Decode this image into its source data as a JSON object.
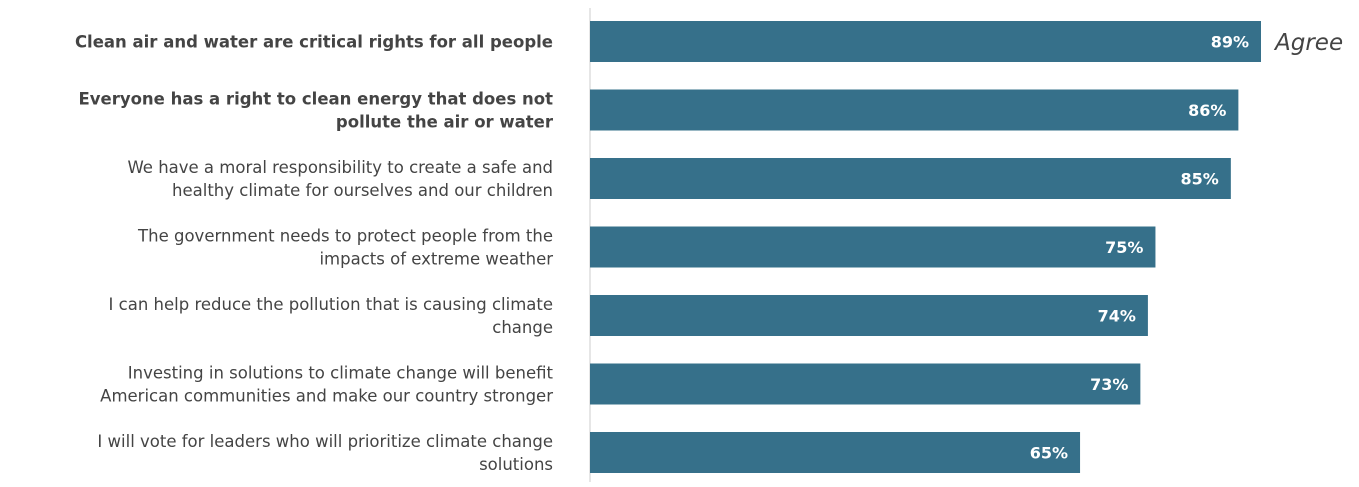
{
  "chart_data": {
    "type": "bar",
    "orientation": "horizontal",
    "series_label": "Agree",
    "categories": [
      "Clean air and water are critical rights for all people",
      "Everyone has a right to clean energy that does not pollute the air or water",
      "We have a moral responsibility to create a safe and healthy climate for ourselves and our children",
      "The government needs to protect people from the impacts of extreme weather",
      "I can help reduce the pollution that is causing climate change",
      "Investing in solutions to climate change will benefit American communities and make our country stronger",
      "I will vote for leaders who will prioritize climate change solutions"
    ],
    "label_lines": [
      [
        "Clean air and water are critical rights for all people"
      ],
      [
        "Everyone has a right to clean energy that does not",
        "pollute the air or water"
      ],
      [
        "We have a moral responsibility to create a safe and",
        "healthy climate for ourselves and our children"
      ],
      [
        "The government needs to protect people from the",
        "impacts of extreme weather"
      ],
      [
        "I can help reduce the pollution that is causing climate",
        "change"
      ],
      [
        "Investing in solutions to climate change will benefit",
        "American communities and make our country stronger"
      ],
      [
        "I will vote for leaders who will prioritize climate change",
        "solutions"
      ]
    ],
    "bold_categories": [
      0,
      1
    ],
    "values": [
      89,
      86,
      85,
      75,
      74,
      73,
      65
    ],
    "value_labels": [
      "89%",
      "86%",
      "85%",
      "75%",
      "74%",
      "73%",
      "65%"
    ],
    "value_unit": "%",
    "xlim": [
      0,
      100
    ],
    "grid": false,
    "bar_color": "#36708a",
    "value_label_color": "#ffffff",
    "label_color": "#444444",
    "axis_color": "#cccccc"
  }
}
